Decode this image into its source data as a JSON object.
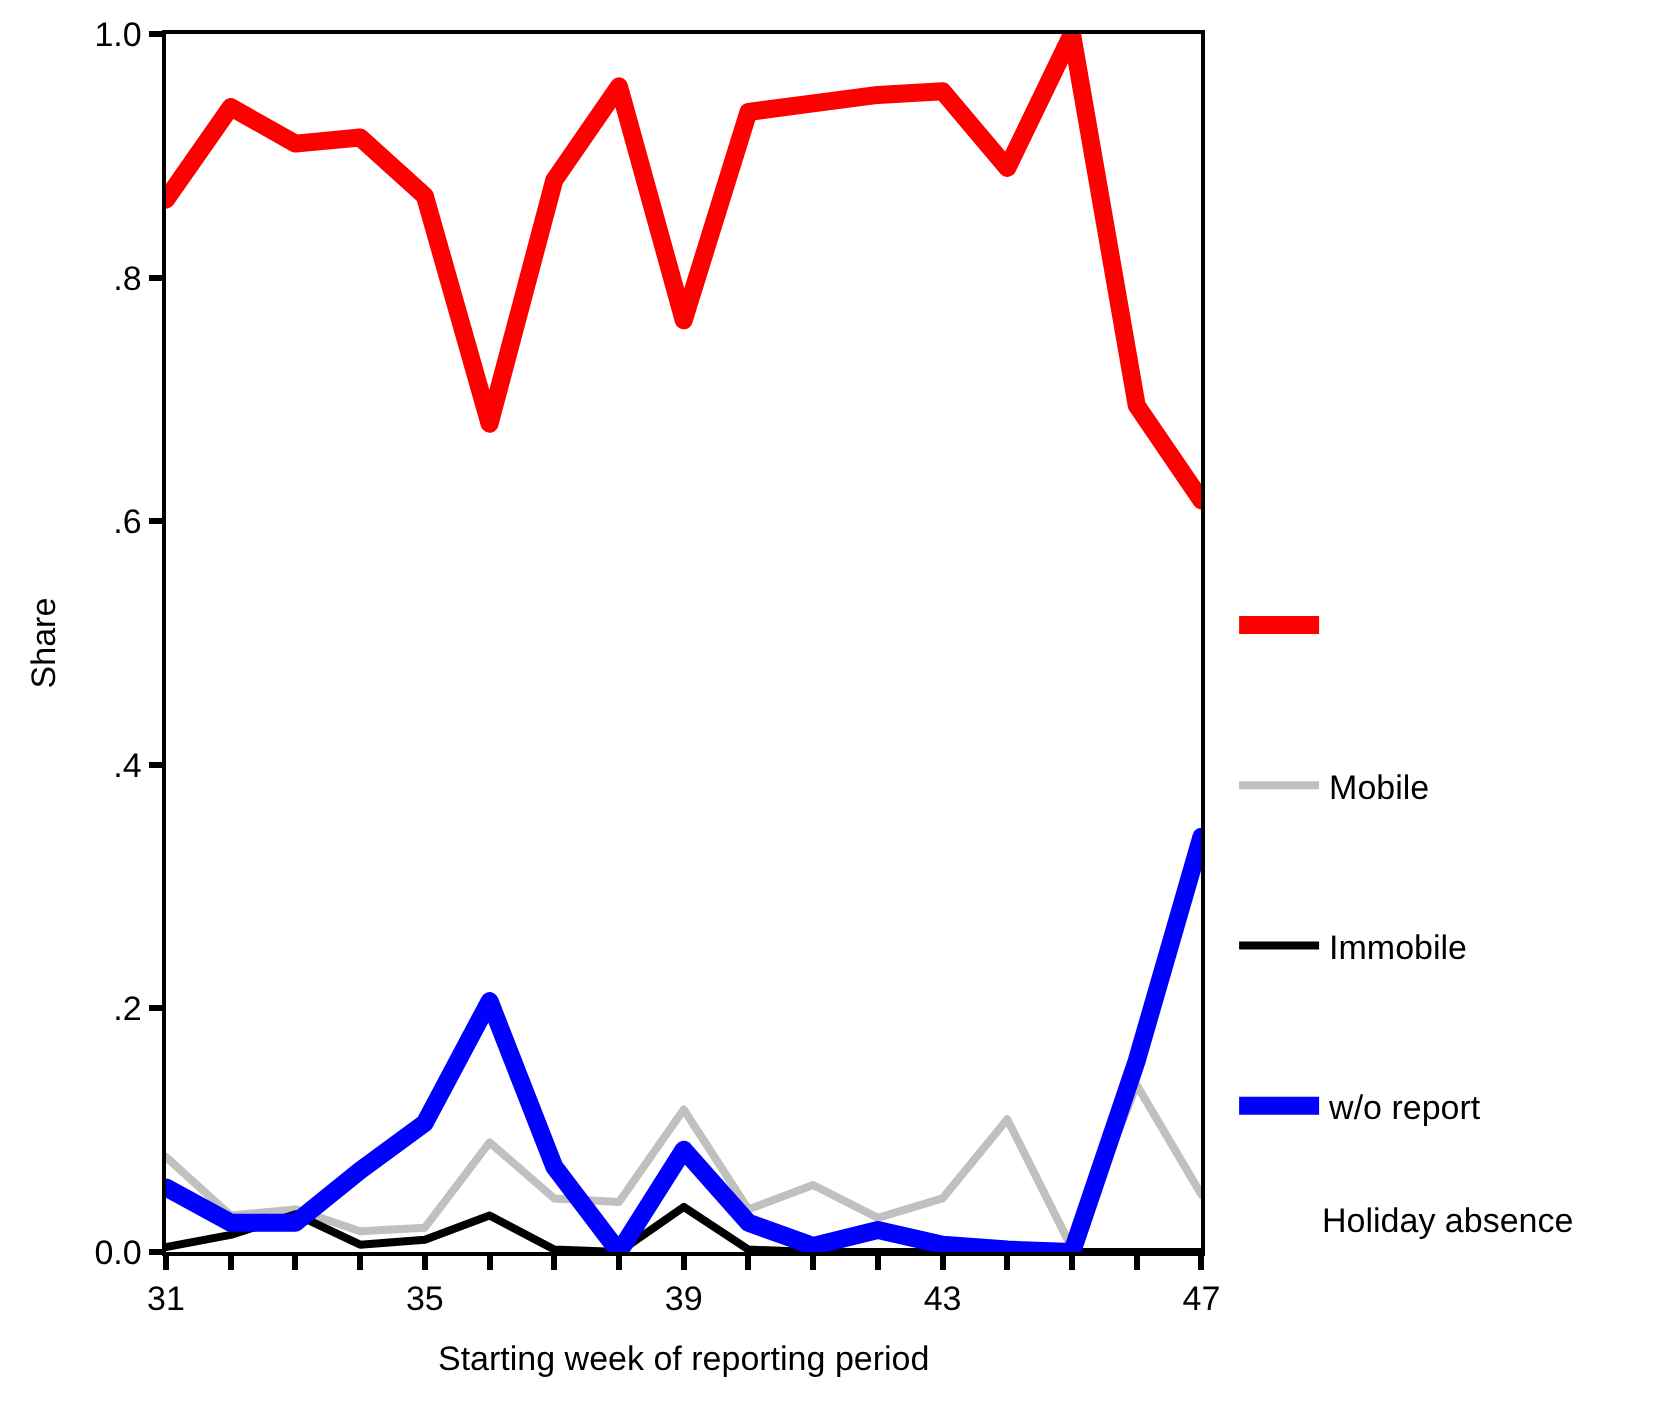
{
  "chart_data": {
    "type": "line",
    "xlabel": "Starting week of reporting period",
    "ylabel": "Share",
    "x": [
      31,
      32,
      33,
      34,
      35,
      36,
      37,
      38,
      39,
      40,
      41,
      42,
      43,
      44,
      45,
      46,
      47
    ],
    "series": [
      {
        "color": "#ff0000",
        "values": [
          0.864,
          0.94,
          0.91,
          0.915,
          0.867,
          0.68,
          0.88,
          0.957,
          0.765,
          0.936,
          0.943,
          0.95,
          0.953,
          0.89,
          1.0,
          0.695,
          0.617
        ]
      },
      {
        "name": "Mobile",
        "color": "#c0c0c0",
        "values": [
          0.078,
          0.03,
          0.035,
          0.017,
          0.02,
          0.09,
          0.044,
          0.041,
          0.117,
          0.035,
          0.055,
          0.028,
          0.044,
          0.109,
          0.003,
          0.137,
          0.047
        ]
      },
      {
        "name": "Immobile",
        "color": "#000000",
        "values": [
          0.004,
          0.014,
          0.031,
          0.006,
          0.01,
          0.03,
          0.002,
          0.0,
          0.037,
          0.002,
          0.0,
          0.0,
          0.0,
          0.0,
          0.0,
          0.0,
          0.0
        ]
      },
      {
        "name": "w/o report",
        "color": "#0000ff",
        "values": [
          0.053,
          0.024,
          0.024,
          0.067,
          0.106,
          0.206,
          0.07,
          0.0,
          0.084,
          0.024,
          0.005,
          0.018,
          0.006,
          0.002,
          0.0,
          0.157,
          0.341
        ]
      }
    ],
    "annotations": [
      "Holiday absence"
    ],
    "xlim": [
      31,
      47
    ],
    "xticks": [
      31,
      {
        "value": 32,
        "label": null
      },
      {
        "value": 33,
        "label": null
      },
      {
        "value": 34,
        "label": null
      },
      35,
      {
        "value": 36,
        "label": null
      },
      {
        "value": 37,
        "label": null
      },
      {
        "value": 38,
        "label": null
      },
      39,
      {
        "value": 40,
        "label": null
      },
      {
        "value": 41,
        "label": null
      },
      {
        "value": 42,
        "label": null
      },
      43,
      {
        "value": 44,
        "label": null
      },
      {
        "value": 45,
        "label": null
      },
      {
        "value": 46,
        "label": null
      },
      47
    ],
    "ylim": [
      0,
      1
    ],
    "yticks": [
      {
        "value": 0,
        "label": "0.0"
      },
      {
        "value": 0.2,
        "label": ".2"
      },
      {
        "value": 0.4,
        "label": ".4"
      },
      {
        "value": 0.6,
        "label": ".6"
      },
      {
        "value": 0.8,
        "label": ".8"
      },
      {
        "value": 1.0,
        "label": "1.0"
      }
    ],
    "legend": "right",
    "grid": false,
    "marker": "none",
    "line_style": "solid"
  }
}
